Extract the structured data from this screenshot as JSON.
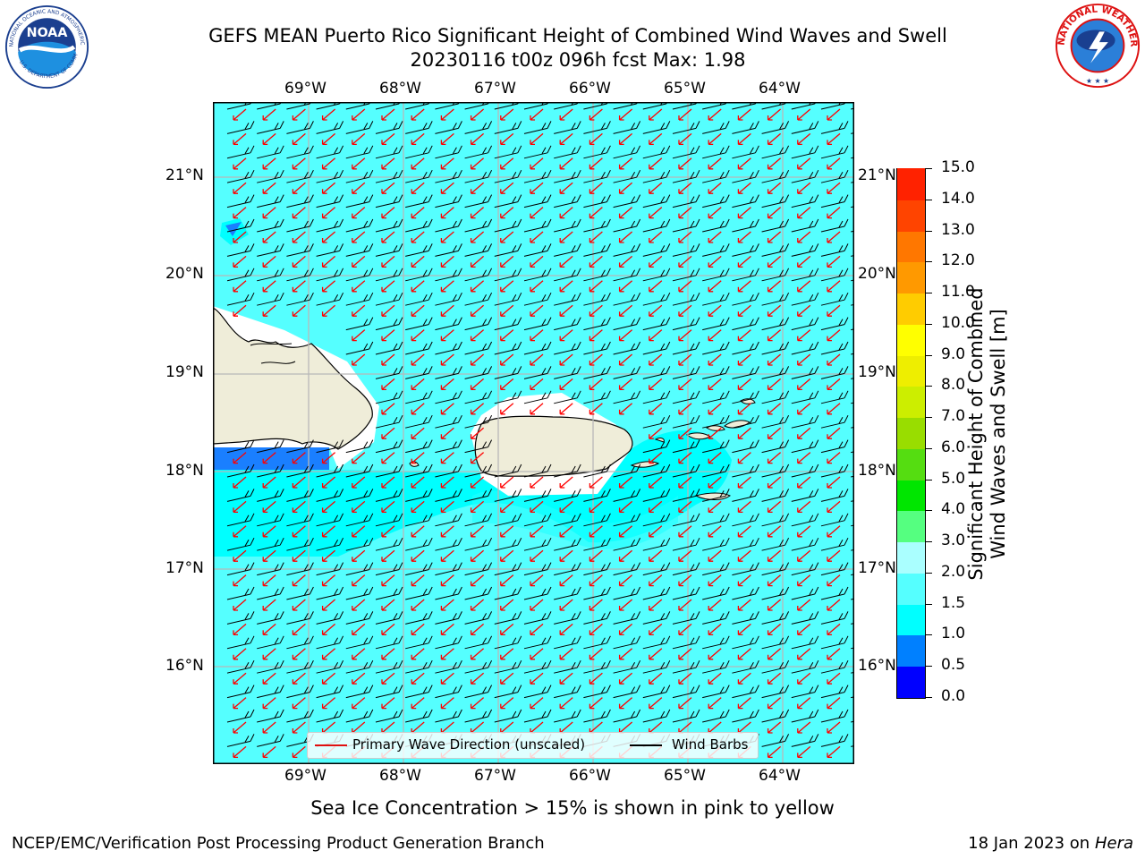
{
  "header": {
    "title_line1": "GEFS MEAN Puerto Rico Significant Height of Combined Wind Waves and Swell",
    "title_line2": "20230116 t00z 096h fcst   Max: 1.98"
  },
  "logos": {
    "left": {
      "text": "NOAA",
      "ring_top": "NATIONAL OCEANIC AND ATMOSPHERIC ADMINISTRATION",
      "ring_bottom": "U.S. DEPARTMENT OF COMMERCE"
    },
    "right": {
      "ring_text": "NATIONAL WEATHER SERVICE"
    }
  },
  "map": {
    "lon_labels": [
      "69°W",
      "68°W",
      "67°W",
      "66°W",
      "65°W",
      "64°W"
    ],
    "lat_labels": [
      "21°N",
      "20°N",
      "19°N",
      "18°N",
      "17°N",
      "16°N"
    ],
    "legend": {
      "wave": "Primary Wave Direction (unscaled)",
      "barb": "Wind Barbs"
    },
    "colors": {
      "ocean": "#55ffff",
      "ocean_dark": "#00ffff",
      "blue_band": "#1a7fff",
      "land": "#efedd9",
      "wave_arrow": "#ff0000",
      "barb": "#000000"
    }
  },
  "colorbar": {
    "label_line1": "Significant Height of Combined",
    "label_line2": "Wind Waves and Swell [m]",
    "ticks": [
      "0.0",
      "0.5",
      "1.0",
      "1.5",
      "2.0",
      "3.0",
      "4.0",
      "5.0",
      "6.0",
      "7.0",
      "8.0",
      "9.0",
      "10.0",
      "11.0",
      "12.0",
      "13.0",
      "14.0",
      "15.0"
    ],
    "colors": [
      "#0000ff",
      "#0080ff",
      "#00ffff",
      "#55ffff",
      "#aaffff",
      "#55ff80",
      "#00e600",
      "#55dd11",
      "#99dd00",
      "#ccee00",
      "#eeee00",
      "#ffff00",
      "#ffcc00",
      "#ff9900",
      "#ff7700",
      "#ff4400",
      "#ff2200",
      "#ff0000"
    ]
  },
  "note": "Sea Ice Concentration > 15% is shown in pink to yellow",
  "footer": {
    "left": "NCEP/EMC/Verification Post Processing Product Generation Branch",
    "right_date": "18 Jan 2023 on ",
    "right_host": "Hera"
  }
}
